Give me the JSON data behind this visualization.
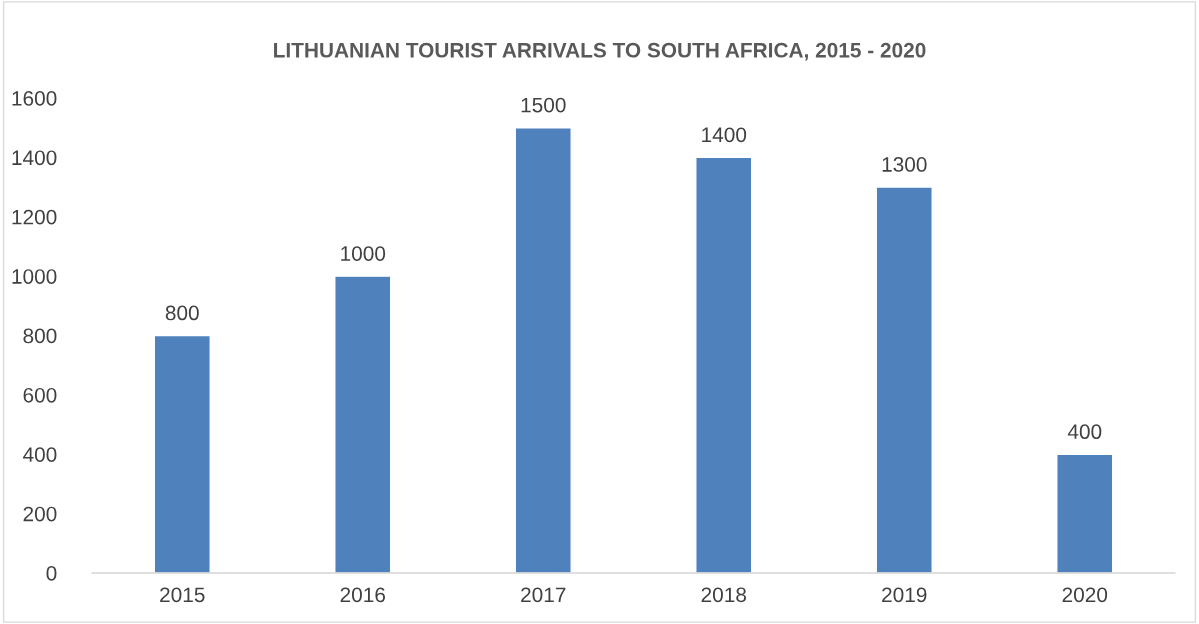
{
  "chart_data": {
    "type": "bar",
    "title": "LITHUANIAN TOURIST ARRIVALS TO SOUTH AFRICA, 2015 - 2020",
    "categories": [
      "2015",
      "2016",
      "2017",
      "2018",
      "2019",
      "2020"
    ],
    "values": [
      800,
      1000,
      1500,
      1400,
      1300,
      400
    ],
    "color": "#4f81bd",
    "ylim": [
      0,
      1600
    ],
    "yticks": [
      0,
      200,
      400,
      600,
      800,
      1000,
      1200,
      1400,
      1600
    ],
    "grid": false,
    "data_labels": true
  }
}
